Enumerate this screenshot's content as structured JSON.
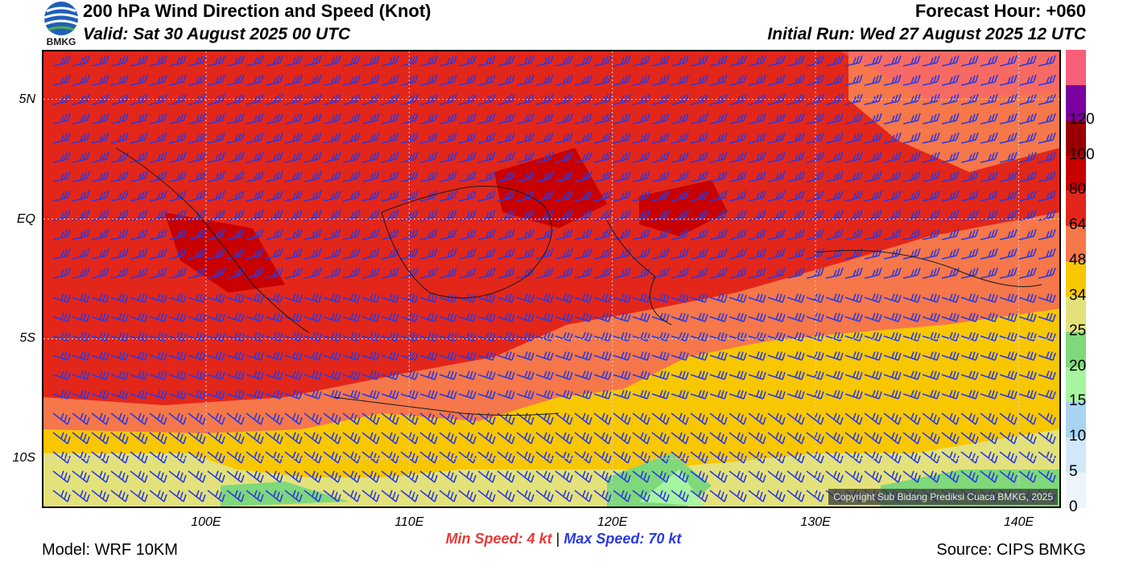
{
  "header": {
    "title": "200 hPa Wind Direction and Speed (Knot)",
    "valid": "Valid: Sat 30 August 2025 00 UTC",
    "forecast_hour": "Forecast Hour: +060",
    "initial_run": "Initial Run: Wed 27 August 2025 12 UTC",
    "logo_text": "BMKG"
  },
  "map": {
    "region": {
      "lon_min": 92,
      "lon_max": 142,
      "lat_min": -12,
      "lat_max": 7
    },
    "lat_ticks": [
      {
        "label": "5N",
        "lat": 5
      },
      {
        "label": "EQ",
        "lat": 0
      },
      {
        "label": "5S",
        "lat": -5
      },
      {
        "label": "10S",
        "lat": -10
      }
    ],
    "lon_ticks": [
      {
        "label": "100E",
        "lon": 100
      },
      {
        "label": "110E",
        "lon": 110
      },
      {
        "label": "120E",
        "lon": 120
      },
      {
        "label": "130E",
        "lon": 130
      },
      {
        "label": "140E",
        "lon": 140
      }
    ],
    "barb_color": "#2a3ae0",
    "copyright": "Copyright Sub Bidang Prediksi Cuaca BMKG, 2025"
  },
  "legend": {
    "levels": [
      {
        "label": "0",
        "color": "#eef5fc"
      },
      {
        "label": "5",
        "color": "#d2e8f8"
      },
      {
        "label": "10",
        "color": "#a8d4f2"
      },
      {
        "label": "15",
        "color": "#a8f5a0"
      },
      {
        "label": "20",
        "color": "#7fd87a"
      },
      {
        "label": "25",
        "color": "#e3e27a"
      },
      {
        "label": "34",
        "color": "#f8c700"
      },
      {
        "label": "48",
        "color": "#f6774a"
      },
      {
        "label": "64",
        "color": "#e3261a"
      },
      {
        "label": "80",
        "color": "#c80000"
      },
      {
        "label": "100",
        "color": "#9b0000"
      },
      {
        "label": "120",
        "color": "#7a00a0"
      },
      {
        "label": "",
        "color": "#f8607a"
      }
    ]
  },
  "footer": {
    "min_label": "Min Speed:",
    "min_value": "4 kt",
    "separator": "|",
    "max_label": "Max Speed:",
    "max_value": "70 kt",
    "model": "Model: WRF 10KM",
    "source": "Source: CIPS BMKG"
  }
}
